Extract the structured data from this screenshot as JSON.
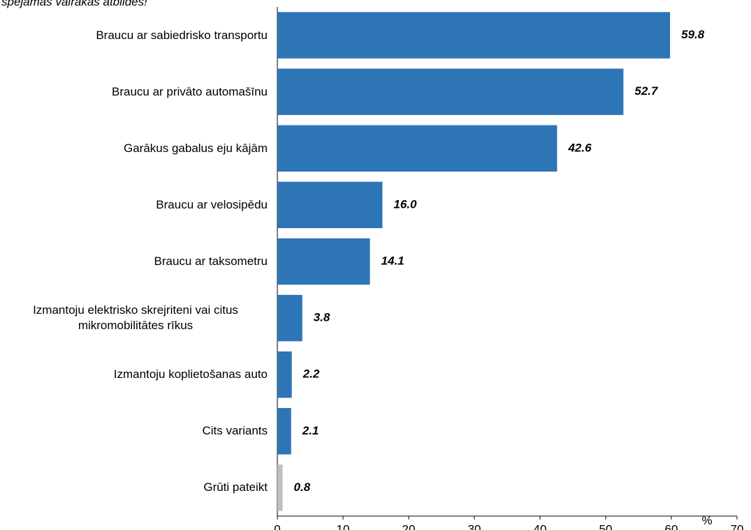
{
  "chart_data": {
    "type": "barh",
    "title": "spējamas vairākas atbildes!",
    "categories": [
      "Braucu ar sabiedrisko transportu",
      "Braucu ar privāto automašīnu",
      "Garākus gabalus eju kājām",
      "Braucu ar velosipēdu",
      "Braucu ar taksometru",
      "Izmantoju elektrisko skrejriteni vai citus mikromobilitātes rīkus",
      "Izmantoju koplietošanas auto",
      "Cits variants",
      "Grūti pateikt"
    ],
    "values": [
      59.8,
      52.7,
      42.6,
      16,
      14.1,
      3.8,
      2.2,
      2.1,
      0.8
    ],
    "value_labels": [
      "59.8",
      "52.7",
      "42.6",
      "16.0",
      "14.1",
      "3.8",
      "2.2",
      "2.1",
      "0.8"
    ],
    "colors": [
      "#2e75b6",
      "#2e75b6",
      "#2e75b6",
      "#2e75b6",
      "#2e75b6",
      "#2e75b6",
      "#2e75b6",
      "#2e75b6",
      "#bfbfbf"
    ],
    "xlabel": "%",
    "xlim": [
      0,
      70
    ],
    "xticks": [
      0,
      10,
      20,
      30,
      40,
      50,
      60,
      70
    ]
  }
}
